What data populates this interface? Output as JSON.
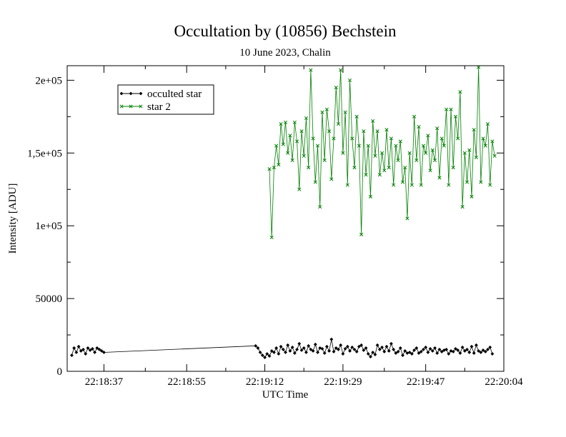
{
  "chart_data": {
    "type": "line",
    "title": "Occultation by (10856) Bechstein",
    "subtitle": "10 June 2023, Chalin",
    "xlabel": "UTC Time",
    "ylabel": "Intensity [ADU]",
    "x_is_time": true,
    "xlim": [
      "22:18:29",
      "22:20:04"
    ],
    "ylim": [
      0,
      210000
    ],
    "xticks": [
      "22:18:37",
      "22:18:55",
      "22:19:12",
      "22:19:29",
      "22:19:47",
      "22:20:04"
    ],
    "yticks": [
      "0",
      "50000",
      "1e+05",
      "1,5e+05",
      "2e+05"
    ],
    "ytick_values": [
      0,
      50000,
      100000,
      150000,
      200000
    ],
    "legend_position": "top-left",
    "grid": false,
    "series": [
      {
        "name": "occulted star",
        "color": "#000000",
        "marker": "diamond",
        "x": [
          "22:18:30",
          "22:18:30.5",
          "22:18:31",
          "22:18:31.5",
          "22:18:32",
          "22:18:32.5",
          "22:18:33",
          "22:18:33.5",
          "22:18:34",
          "22:18:34.5",
          "22:18:35",
          "22:18:35.5",
          "22:18:36",
          "22:18:36.5",
          "22:18:37",
          "22:19:10",
          "22:19:10.5",
          "22:19:11",
          "22:19:11.5",
          "22:19:12",
          "22:19:12.5",
          "22:19:13",
          "22:19:13.5",
          "22:19:14",
          "22:19:14.5",
          "22:19:15",
          "22:19:15.5",
          "22:19:16",
          "22:19:16.5",
          "22:19:17",
          "22:19:17.5",
          "22:19:18",
          "22:19:18.5",
          "22:19:19",
          "22:19:19.5",
          "22:19:20",
          "22:19:20.5",
          "22:19:21",
          "22:19:21.5",
          "22:19:22",
          "22:19:22.5",
          "22:19:23",
          "22:19:23.5",
          "22:19:24",
          "22:19:24.5",
          "22:19:25",
          "22:19:25.5",
          "22:19:26",
          "22:19:26.5",
          "22:19:27",
          "22:19:27.5",
          "22:19:28",
          "22:19:28.5",
          "22:19:29",
          "22:19:29.5",
          "22:19:30",
          "22:19:30.5",
          "22:19:31",
          "22:19:31.5",
          "22:19:32",
          "22:19:32.5",
          "22:19:33",
          "22:19:33.5",
          "22:19:34",
          "22:19:34.5",
          "22:19:35",
          "22:19:35.5",
          "22:19:36",
          "22:19:36.5",
          "22:19:37",
          "22:19:37.5",
          "22:19:38",
          "22:19:38.5",
          "22:19:39",
          "22:19:39.5",
          "22:19:40",
          "22:19:40.5",
          "22:19:41",
          "22:19:41.5",
          "22:19:42",
          "22:19:42.5",
          "22:19:43",
          "22:19:43.5",
          "22:19:44",
          "22:19:44.5",
          "22:19:45",
          "22:19:45.5",
          "22:19:46",
          "22:19:46.5",
          "22:19:47",
          "22:19:47.5",
          "22:19:48",
          "22:19:48.5",
          "22:19:49",
          "22:19:49.5",
          "22:19:50",
          "22:19:50.5",
          "22:19:51",
          "22:19:51.5",
          "22:19:52",
          "22:19:52.5",
          "22:19:53",
          "22:19:53.5",
          "22:19:54",
          "22:19:54.5",
          "22:19:55",
          "22:19:55.5",
          "22:19:56",
          "22:19:56.5",
          "22:19:57",
          "22:19:57.5",
          "22:19:58",
          "22:19:58.5",
          "22:19:59",
          "22:19:59.5",
          "22:20:00",
          "22:20:00.5",
          "22:20:01",
          "22:20:01.5"
        ],
        "y": [
          11000,
          16000,
          13000,
          17000,
          14000,
          15000,
          12000,
          16000,
          14500,
          15500,
          13000,
          16000,
          15000,
          14000,
          13000,
          17500,
          16000,
          13000,
          11000,
          9500,
          12000,
          10500,
          14000,
          13000,
          16000,
          12000,
          17000,
          15000,
          13000,
          18000,
          14000,
          16500,
          12500,
          15000,
          19000,
          14500,
          16000,
          13000,
          17500,
          15000,
          14000,
          18500,
          13000,
          16000,
          15500,
          12500,
          17000,
          14000,
          22000,
          13500,
          16000,
          15000,
          18000,
          12000,
          15500,
          17000,
          14000,
          16500,
          15000,
          13500,
          17000,
          18000,
          14500,
          16000,
          12000,
          10000,
          13000,
          11500,
          18000,
          15000,
          16500,
          13500,
          17000,
          14000,
          19000,
          15000,
          12500,
          13500,
          16000,
          11000,
          14000,
          12500,
          13000,
          12000,
          14500,
          16000,
          12500,
          13500,
          15000,
          16500,
          13000,
          15500,
          14000,
          16000,
          12500,
          15000,
          13500,
          14500,
          15000,
          12000,
          14000,
          13500,
          15500,
          14500,
          12500,
          16500,
          14000,
          15000,
          13000,
          17000,
          12500,
          18000,
          14000,
          13000,
          14500,
          13500,
          15000,
          16500,
          12000
        ]
      },
      {
        "name": "star 2",
        "color": "#008000",
        "marker": "x",
        "x": [
          "22:19:13",
          "22:19:13.5",
          "22:19:14",
          "22:19:14.5",
          "22:19:15",
          "22:19:15.5",
          "22:19:16",
          "22:19:16.5",
          "22:19:17",
          "22:19:17.5",
          "22:19:18",
          "22:19:18.5",
          "22:19:19",
          "22:19:19.5",
          "22:19:20",
          "22:19:20.5",
          "22:19:21",
          "22:19:21.5",
          "22:19:22",
          "22:19:22.5",
          "22:19:23",
          "22:19:23.5",
          "22:19:24",
          "22:19:24.5",
          "22:19:25",
          "22:19:25.5",
          "22:19:26",
          "22:19:26.5",
          "22:19:27",
          "22:19:27.5",
          "22:19:28",
          "22:19:28.5",
          "22:19:29",
          "22:19:29.5",
          "22:19:30",
          "22:19:30.5",
          "22:19:31",
          "22:19:31.5",
          "22:19:32",
          "22:19:32.5",
          "22:19:33",
          "22:19:33.5",
          "22:19:34",
          "22:19:34.5",
          "22:19:35",
          "22:19:35.5",
          "22:19:36",
          "22:19:36.5",
          "22:19:37",
          "22:19:37.5",
          "22:19:38",
          "22:19:38.5",
          "22:19:39",
          "22:19:39.5",
          "22:19:40",
          "22:19:40.5",
          "22:19:41",
          "22:19:41.5",
          "22:19:42",
          "22:19:42.5",
          "22:19:43",
          "22:19:43.5",
          "22:19:44",
          "22:19:44.5",
          "22:19:45",
          "22:19:45.5",
          "22:19:46",
          "22:19:46.5",
          "22:19:47",
          "22:19:47.5",
          "22:19:48",
          "22:19:48.5",
          "22:19:49",
          "22:19:49.5",
          "22:19:50",
          "22:19:50.5",
          "22:19:51",
          "22:19:51.5",
          "22:19:52",
          "22:19:52.5",
          "22:19:53",
          "22:19:53.5",
          "22:19:54",
          "22:19:54.5",
          "22:19:55",
          "22:19:55.5",
          "22:19:56",
          "22:19:56.5",
          "22:19:57",
          "22:19:57.5",
          "22:19:58",
          "22:19:58.5",
          "22:19:59",
          "22:19:59.5",
          "22:20:00",
          "22:20:00.5",
          "22:20:01",
          "22:20:01.5",
          "22:20:02"
        ],
        "y": [
          139000,
          92000,
          140000,
          155000,
          142000,
          170000,
          156000,
          171000,
          150000,
          162000,
          145000,
          171000,
          158000,
          125000,
          165000,
          148000,
          174000,
          140000,
          207000,
          160000,
          130000,
          155000,
          113000,
          178000,
          145000,
          180000,
          165000,
          132000,
          160000,
          195000,
          170000,
          207000,
          150000,
          178000,
          128000,
          200000,
          160000,
          140000,
          175000,
          155000,
          94000,
          165000,
          135000,
          155000,
          120000,
          172000,
          148000,
          165000,
          135000,
          150000,
          138000,
          166000,
          140000,
          160000,
          128000,
          155000,
          145000,
          158000,
          130000,
          140000,
          105000,
          150000,
          128000,
          175000,
          145000,
          168000,
          128000,
          155000,
          150000,
          162000,
          138000,
          152000,
          145000,
          167000,
          133000,
          160000,
          155000,
          180000,
          128000,
          180000,
          140000,
          175000,
          160000,
          192000,
          113000,
          150000,
          130000,
          152000,
          120000,
          166000,
          147000,
          209000,
          130000,
          160000,
          155000,
          170000,
          128000,
          158000,
          148000
        ]
      }
    ]
  }
}
